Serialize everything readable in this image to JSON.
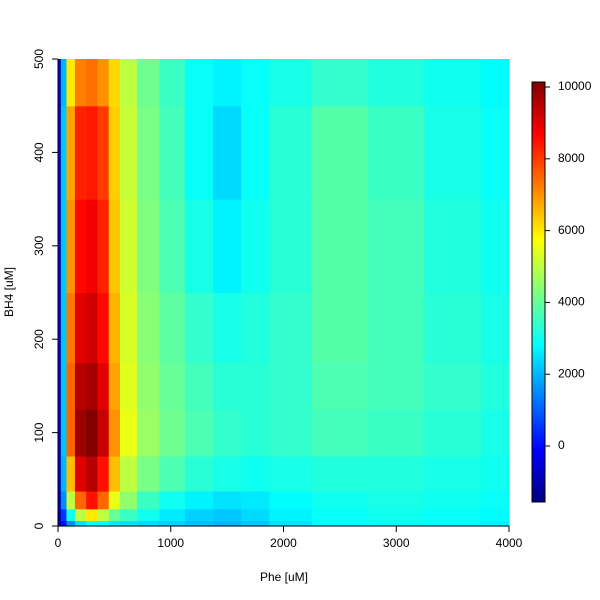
{
  "chart_data": {
    "type": "contour",
    "xlabel": "Phe [uM]",
    "ylabel": "BH4 [uM]",
    "x": [
      0,
      50,
      100,
      200,
      300,
      400,
      500,
      600,
      800,
      1000,
      1250,
      1500,
      1750,
      2000,
      2500,
      3000,
      3500,
      4000
    ],
    "y": [
      0,
      12,
      25,
      50,
      100,
      150,
      200,
      300,
      400,
      500
    ],
    "z": [
      [
        -1000,
        0,
        1500,
        2500,
        3000,
        2800,
        2600,
        2500,
        2400,
        2300,
        2100,
        2000,
        2200,
        2500,
        2800,
        2900,
        2800,
        2700
      ],
      [
        -1000,
        500,
        3000,
        5000,
        6000,
        5000,
        4000,
        3500,
        3000,
        2600,
        2300,
        2200,
        2400,
        2700,
        2900,
        3000,
        2900,
        2800
      ],
      [
        -800,
        1500,
        5000,
        7500,
        8500,
        7500,
        5500,
        4500,
        3500,
        3000,
        2700,
        2500,
        2600,
        2800,
        3000,
        3100,
        3000,
        2900
      ],
      [
        -600,
        2000,
        6500,
        9000,
        9500,
        8500,
        6500,
        5000,
        4200,
        3700,
        3300,
        3100,
        3000,
        3100,
        3200,
        3200,
        3100,
        3000
      ],
      [
        -500,
        2200,
        7500,
        9800,
        10100,
        9300,
        7000,
        5500,
        4600,
        4100,
        3700,
        3400,
        3300,
        3400,
        3600,
        3500,
        3300,
        3100
      ],
      [
        -500,
        2200,
        7500,
        9500,
        9700,
        9000,
        6800,
        5400,
        4500,
        4000,
        3600,
        3300,
        3300,
        3400,
        3700,
        3600,
        3400,
        3200
      ],
      [
        -500,
        2200,
        7300,
        9000,
        9200,
        8600,
        6600,
        5300,
        4400,
        3900,
        3400,
        3100,
        3200,
        3400,
        3800,
        3600,
        3300,
        3100
      ],
      [
        -500,
        2200,
        7000,
        8600,
        8800,
        8300,
        6400,
        5200,
        4300,
        3700,
        3100,
        2700,
        3000,
        3300,
        3800,
        3600,
        3200,
        3000
      ],
      [
        -500,
        2200,
        6800,
        8300,
        8400,
        8000,
        6300,
        5100,
        4200,
        3600,
        2900,
        2400,
        2900,
        3300,
        3800,
        3500,
        3100,
        2900
      ],
      [
        -500,
        2000,
        6000,
        7200,
        7400,
        7000,
        6200,
        5000,
        4100,
        3500,
        2900,
        2700,
        2900,
        3100,
        3400,
        3200,
        3000,
        2800
      ]
    ],
    "xlim": [
      0,
      4000
    ],
    "xticks": [
      0,
      1000,
      2000,
      3000,
      4000
    ],
    "ylim": [
      0,
      500
    ],
    "yticks": [
      0,
      100,
      200,
      300,
      400,
      500
    ],
    "zlim": [
      -1560,
      10140
    ],
    "zticks": [
      0,
      2000,
      4000,
      6000,
      8000,
      10000
    ],
    "palette": [
      "#00007F",
      "#0000FF",
      "#007FFF",
      "#00FFFF",
      "#7FFF7F",
      "#FFFF00",
      "#FF7F00",
      "#FF0000",
      "#7F0000"
    ]
  }
}
